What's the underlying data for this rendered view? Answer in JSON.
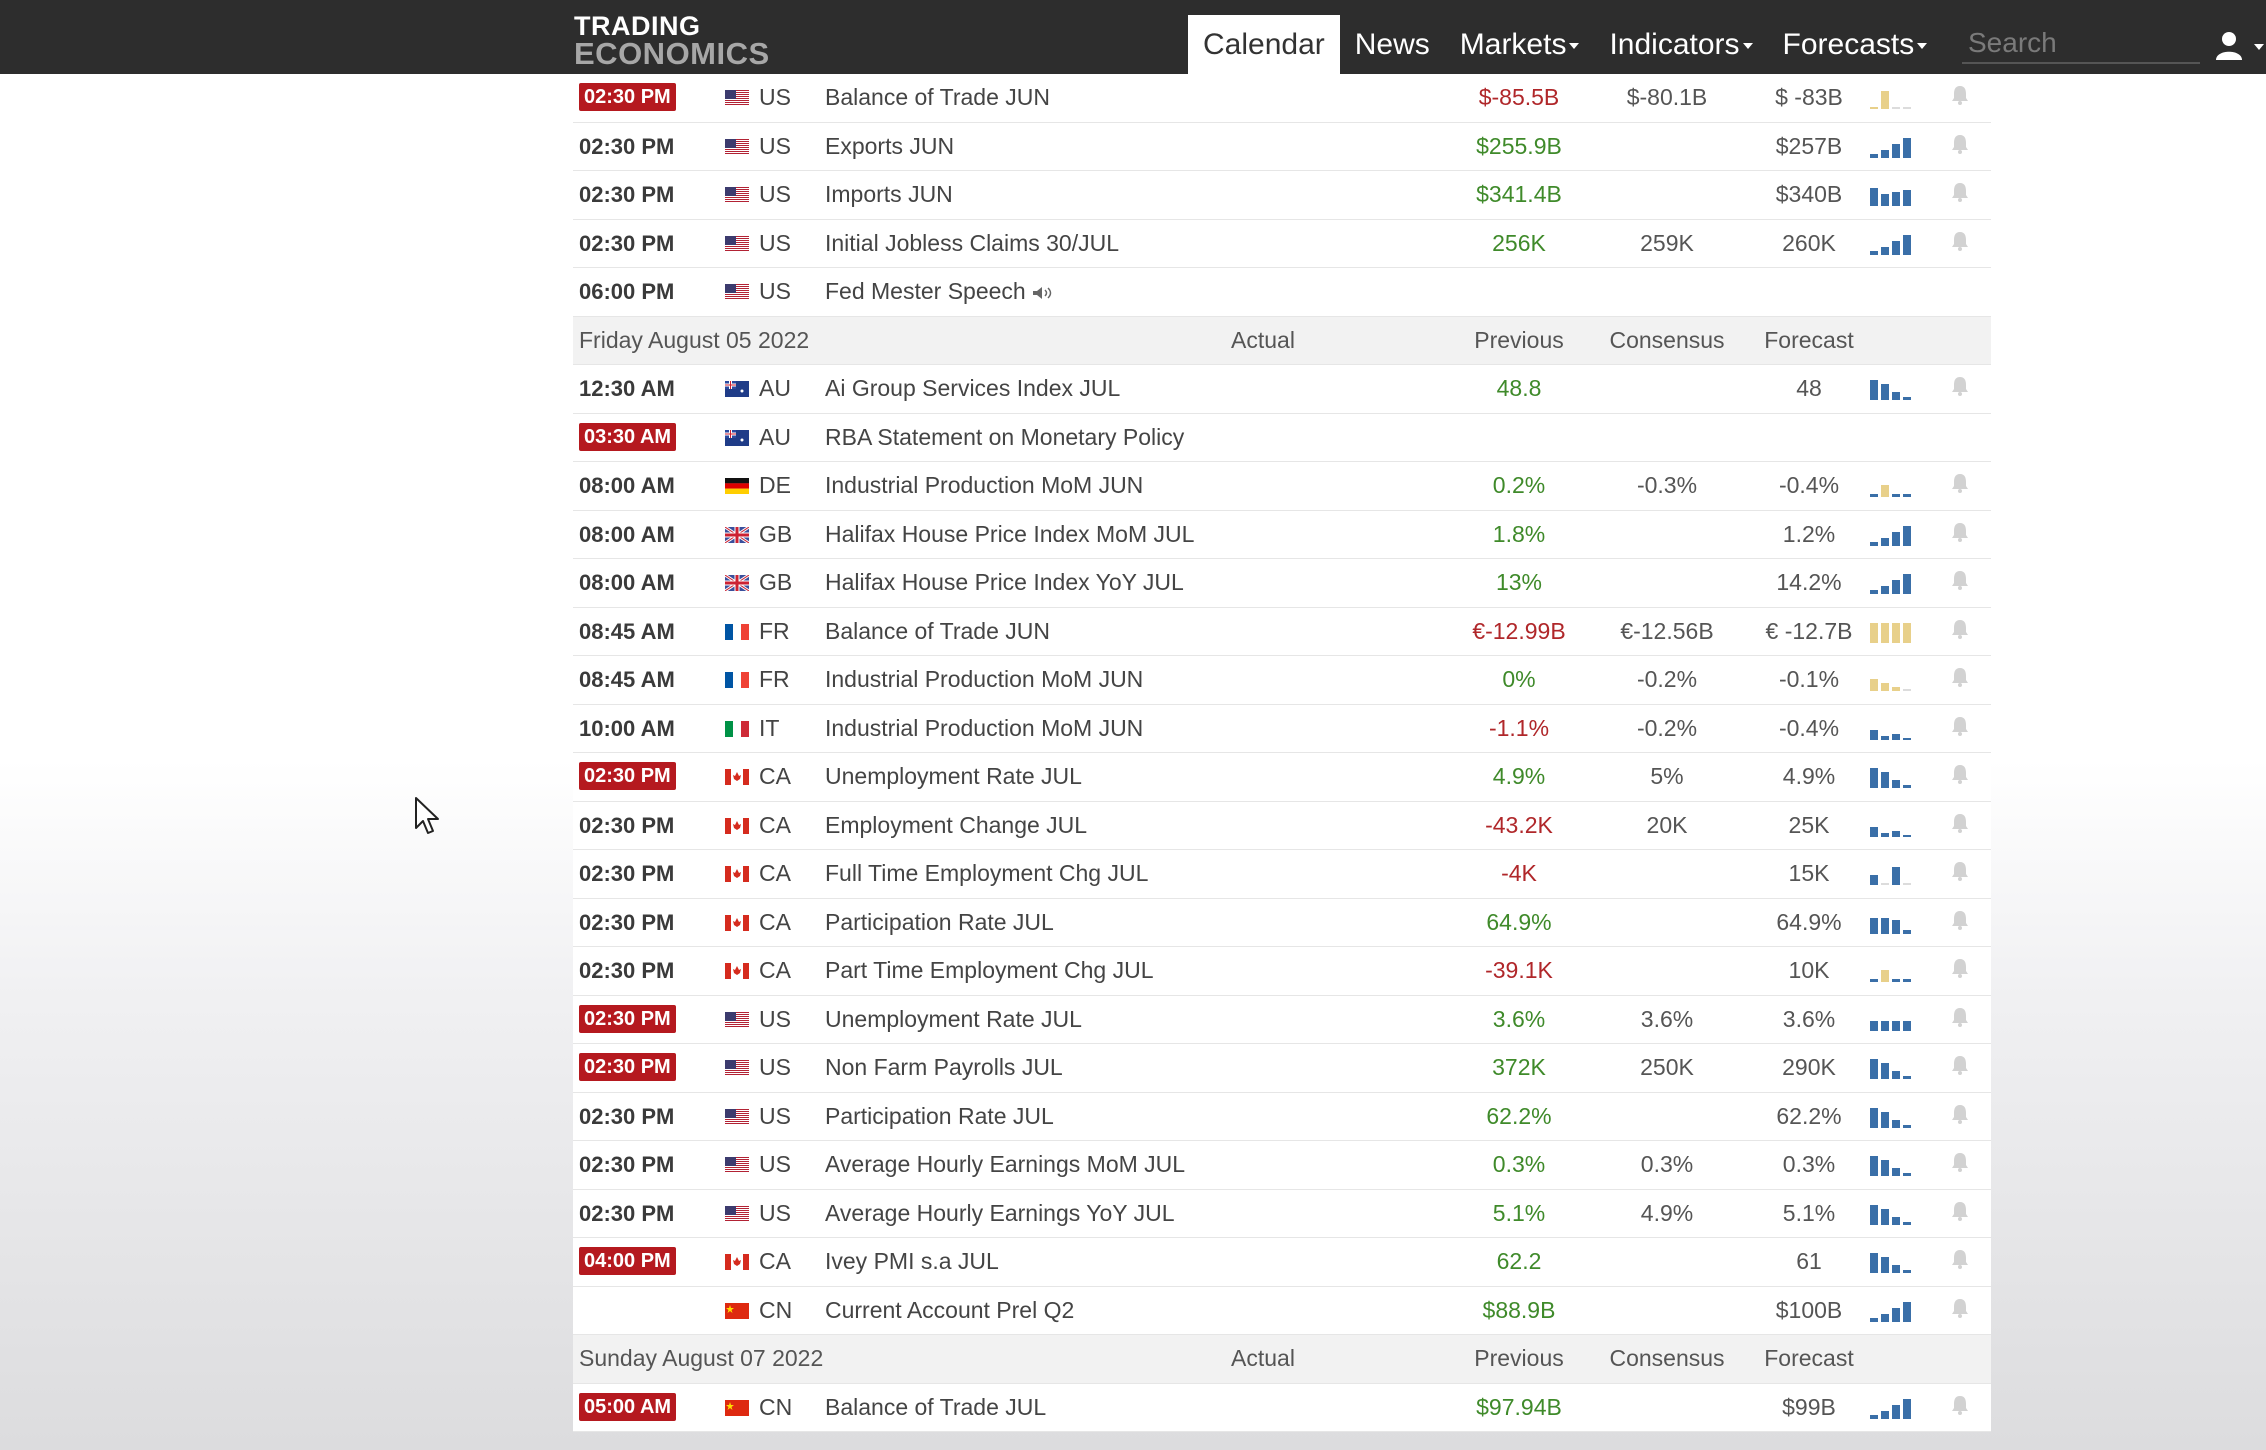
{
  "header": {
    "logo_line1": "TRADING",
    "logo_line2": "ECONOMICS",
    "nav": [
      {
        "label": "Calendar",
        "active": true,
        "dropdown": false
      },
      {
        "label": "News",
        "active": false,
        "dropdown": false
      },
      {
        "label": "Markets",
        "active": false,
        "dropdown": true
      },
      {
        "label": "Indicators",
        "active": false,
        "dropdown": true
      },
      {
        "label": "Forecasts",
        "active": false,
        "dropdown": true
      }
    ],
    "search_placeholder": "Search",
    "user_icon": "user-icon"
  },
  "colors": {
    "header_bg": "#2d2d2d",
    "time_badge": "#b5191f",
    "positive": "#3f8a2a",
    "negative": "#b0272a",
    "spark_blue": "#3a6fa8",
    "spark_yellow": "#e8d08a",
    "day_header_bg": "#f2f2f2"
  },
  "calendar": {
    "columns": [
      "Actual",
      "Previous",
      "Consensus",
      "Forecast"
    ],
    "rows": [
      {
        "type": "event",
        "time": "02:30 PM",
        "highlight": true,
        "country": "US",
        "flag": "us",
        "event": "Balance of Trade JUN",
        "actual": "",
        "previous": "$-85.5B",
        "previous_tone": "neg",
        "consensus": "$-80.1B",
        "forecast": "$ -83B",
        "spark": "yellow-single"
      },
      {
        "type": "event",
        "time": "02:30 PM",
        "highlight": false,
        "country": "US",
        "flag": "us",
        "event": "Exports JUN",
        "actual": "",
        "previous": "$255.9B",
        "previous_tone": "pos",
        "consensus": "",
        "forecast": "$257B",
        "spark": "blue-rising"
      },
      {
        "type": "event",
        "time": "02:30 PM",
        "highlight": false,
        "country": "US",
        "flag": "us",
        "event": "Imports JUN",
        "actual": "",
        "previous": "$341.4B",
        "previous_tone": "pos",
        "consensus": "",
        "forecast": "$340B",
        "spark": "blue-high"
      },
      {
        "type": "event",
        "time": "02:30 PM",
        "highlight": false,
        "country": "US",
        "flag": "us",
        "event": "Initial Jobless Claims 30/JUL",
        "actual": "",
        "previous": "256K",
        "previous_tone": "pos",
        "consensus": "259K",
        "forecast": "260K",
        "spark": "blue-rising"
      },
      {
        "type": "event",
        "time": "06:00 PM",
        "highlight": false,
        "country": "US",
        "flag": "us",
        "event": "Fed Mester Speech",
        "speaker": true,
        "actual": "",
        "previous": "",
        "previous_tone": "",
        "consensus": "",
        "forecast": "",
        "spark": "none"
      },
      {
        "type": "day",
        "date": "Friday August 05 2022"
      },
      {
        "type": "event",
        "time": "12:30 AM",
        "highlight": false,
        "country": "AU",
        "flag": "au",
        "event": "Ai Group Services Index JUL",
        "actual": "",
        "previous": "48.8",
        "previous_tone": "pos",
        "consensus": "",
        "forecast": "48",
        "spark": "blue-falling"
      },
      {
        "type": "event",
        "time": "03:30 AM",
        "highlight": true,
        "country": "AU",
        "flag": "au",
        "event": "RBA Statement on Monetary Policy",
        "actual": "",
        "previous": "",
        "previous_tone": "",
        "consensus": "",
        "forecast": "",
        "spark": "none"
      },
      {
        "type": "event",
        "time": "08:00 AM",
        "highlight": false,
        "country": "DE",
        "flag": "de",
        "event": "Industrial Production MoM JUN",
        "actual": "",
        "previous": "0.2%",
        "previous_tone": "pos",
        "consensus": "-0.3%",
        "forecast": "-0.4%",
        "spark": "mixed-flat"
      },
      {
        "type": "event",
        "time": "08:00 AM",
        "highlight": false,
        "country": "GB",
        "flag": "gb",
        "event": "Halifax House Price Index MoM JUL",
        "actual": "",
        "previous": "1.8%",
        "previous_tone": "pos",
        "consensus": "",
        "forecast": "1.2%",
        "spark": "blue-rising"
      },
      {
        "type": "event",
        "time": "08:00 AM",
        "highlight": false,
        "country": "GB",
        "flag": "gb",
        "event": "Halifax House Price Index YoY JUL",
        "actual": "",
        "previous": "13%",
        "previous_tone": "pos",
        "consensus": "",
        "forecast": "14.2%",
        "spark": "blue-rising"
      },
      {
        "type": "event",
        "time": "08:45 AM",
        "highlight": false,
        "country": "FR",
        "flag": "fr",
        "event": "Balance of Trade JUN",
        "actual": "",
        "previous": "€-12.99B",
        "previous_tone": "neg",
        "consensus": "€-12.56B",
        "forecast": "€ -12.7B",
        "spark": "yellow-block"
      },
      {
        "type": "event",
        "time": "08:45 AM",
        "highlight": false,
        "country": "FR",
        "flag": "fr",
        "event": "Industrial Production MoM JUN",
        "actual": "",
        "previous": "0%",
        "previous_tone": "pos",
        "consensus": "-0.2%",
        "forecast": "-0.1%",
        "spark": "yellow-small"
      },
      {
        "type": "event",
        "time": "10:00 AM",
        "highlight": false,
        "country": "IT",
        "flag": "it",
        "event": "Industrial Production MoM JUN",
        "actual": "",
        "previous": "-1.1%",
        "previous_tone": "neg",
        "consensus": "-0.2%",
        "forecast": "-0.4%",
        "spark": "blue-low"
      },
      {
        "type": "event",
        "time": "02:30 PM",
        "highlight": true,
        "country": "CA",
        "flag": "ca",
        "event": "Unemployment Rate JUL",
        "actual": "",
        "previous": "4.9%",
        "previous_tone": "pos",
        "consensus": "5%",
        "forecast": "4.9%",
        "spark": "blue-falling"
      },
      {
        "type": "event",
        "time": "02:30 PM",
        "highlight": false,
        "country": "CA",
        "flag": "ca",
        "event": "Employment Change JUL",
        "actual": "",
        "previous": "-43.2K",
        "previous_tone": "neg",
        "consensus": "20K",
        "forecast": "25K",
        "spark": "blue-low"
      },
      {
        "type": "event",
        "time": "02:30 PM",
        "highlight": false,
        "country": "CA",
        "flag": "ca",
        "event": "Full Time Employment Chg JUL",
        "actual": "",
        "previous": "-4K",
        "previous_tone": "neg",
        "consensus": "",
        "forecast": "15K",
        "spark": "blue-two"
      },
      {
        "type": "event",
        "time": "02:30 PM",
        "highlight": false,
        "country": "CA",
        "flag": "ca",
        "event": "Participation Rate JUL",
        "actual": "",
        "previous": "64.9%",
        "previous_tone": "pos",
        "consensus": "",
        "forecast": "64.9%",
        "spark": "blue-even"
      },
      {
        "type": "event",
        "time": "02:30 PM",
        "highlight": false,
        "country": "CA",
        "flag": "ca",
        "event": "Part Time Employment Chg JUL",
        "actual": "",
        "previous": "-39.1K",
        "previous_tone": "neg",
        "consensus": "",
        "forecast": "10K",
        "spark": "mixed-flat"
      },
      {
        "type": "event",
        "time": "02:30 PM",
        "highlight": true,
        "country": "US",
        "flag": "us",
        "event": "Unemployment Rate JUL",
        "actual": "",
        "previous": "3.6%",
        "previous_tone": "pos",
        "consensus": "3.6%",
        "forecast": "3.6%",
        "spark": "blue-flat"
      },
      {
        "type": "event",
        "time": "02:30 PM",
        "highlight": true,
        "country": "US",
        "flag": "us",
        "event": "Non Farm Payrolls JUL",
        "actual": "",
        "previous": "372K",
        "previous_tone": "pos",
        "consensus": "250K",
        "forecast": "290K",
        "spark": "blue-falling"
      },
      {
        "type": "event",
        "time": "02:30 PM",
        "highlight": false,
        "country": "US",
        "flag": "us",
        "event": "Participation Rate JUL",
        "actual": "",
        "previous": "62.2%",
        "previous_tone": "pos",
        "consensus": "",
        "forecast": "62.2%",
        "spark": "blue-falling"
      },
      {
        "type": "event",
        "time": "02:30 PM",
        "highlight": false,
        "country": "US",
        "flag": "us",
        "event": "Average Hourly Earnings MoM JUL",
        "actual": "",
        "previous": "0.3%",
        "previous_tone": "pos",
        "consensus": "0.3%",
        "forecast": "0.3%",
        "spark": "blue-falling"
      },
      {
        "type": "event",
        "time": "02:30 PM",
        "highlight": false,
        "country": "US",
        "flag": "us",
        "event": "Average Hourly Earnings YoY JUL",
        "actual": "",
        "previous": "5.1%",
        "previous_tone": "pos",
        "consensus": "4.9%",
        "forecast": "5.1%",
        "spark": "blue-falling"
      },
      {
        "type": "event",
        "time": "04:00 PM",
        "highlight": true,
        "country": "CA",
        "flag": "ca",
        "event": "Ivey PMI s.a JUL",
        "actual": "",
        "previous": "62.2",
        "previous_tone": "pos",
        "consensus": "",
        "forecast": "61",
        "spark": "blue-falling"
      },
      {
        "type": "event",
        "time": "",
        "highlight": false,
        "country": "CN",
        "flag": "cn",
        "event": "Current Account Prel Q2",
        "actual": "",
        "previous": "$88.9B",
        "previous_tone": "pos",
        "consensus": "",
        "forecast": "$100B",
        "spark": "blue-rising"
      },
      {
        "type": "day",
        "date": "Sunday August 07 2022"
      },
      {
        "type": "event",
        "time": "05:00 AM",
        "highlight": true,
        "country": "CN",
        "flag": "cn",
        "event": "Balance of Trade JUL",
        "actual": "",
        "previous": "$97.94B",
        "previous_tone": "pos",
        "consensus": "",
        "forecast": "$99B",
        "spark": "blue-rising"
      }
    ]
  }
}
